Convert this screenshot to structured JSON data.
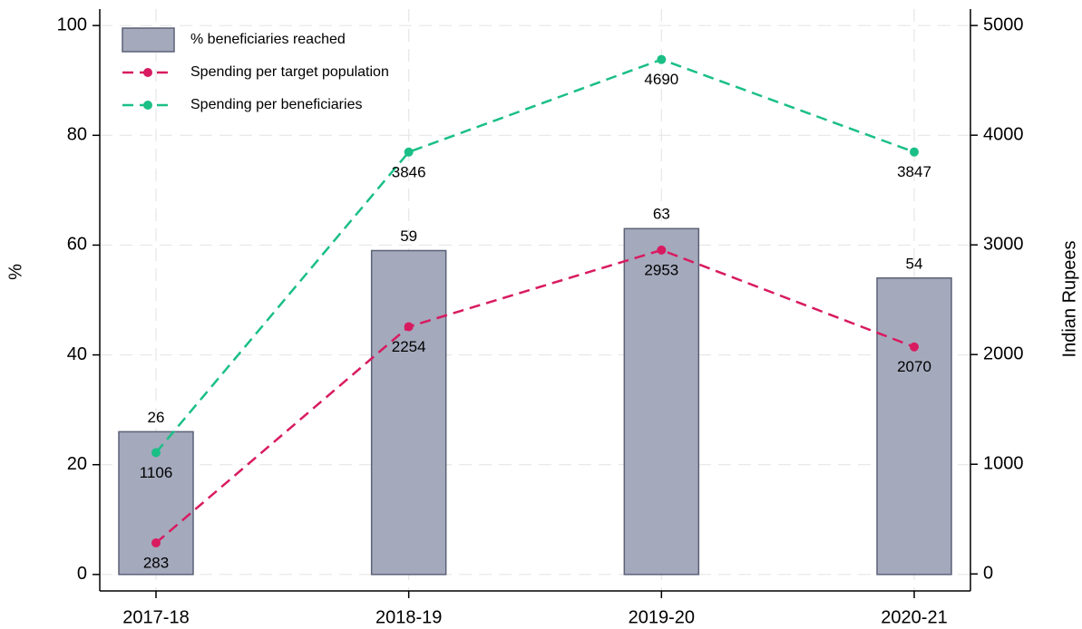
{
  "chart_data": {
    "type": "bar",
    "categories": [
      "2017-18",
      "2018-19",
      "2019-20",
      "2020-21"
    ],
    "series": [
      {
        "name": "% beneficiaries reached",
        "type": "bar",
        "color": "#a4a9bc",
        "values": [
          26,
          59,
          63,
          54
        ]
      },
      {
        "name": "Spending per target population",
        "type": "line",
        "axis": "y2",
        "color": "#d81b60",
        "values": [
          283,
          2254,
          2953,
          2070
        ]
      },
      {
        "name": "Spending per beneficiaries",
        "type": "line",
        "axis": "y2",
        "color": "#1bbf86",
        "values": [
          1106,
          3846,
          4690,
          3847
        ]
      }
    ],
    "ylabel": "%",
    "y2label": "Indian Rupees",
    "ylim": [
      -3,
      103
    ],
    "yticks": [
      0,
      20,
      40,
      60,
      80,
      100
    ],
    "y2lim": [
      -155,
      5150
    ],
    "y2ticks": [
      0,
      1000,
      2000,
      3000,
      4000,
      5000
    ],
    "grid": true,
    "legend": "top-left"
  }
}
